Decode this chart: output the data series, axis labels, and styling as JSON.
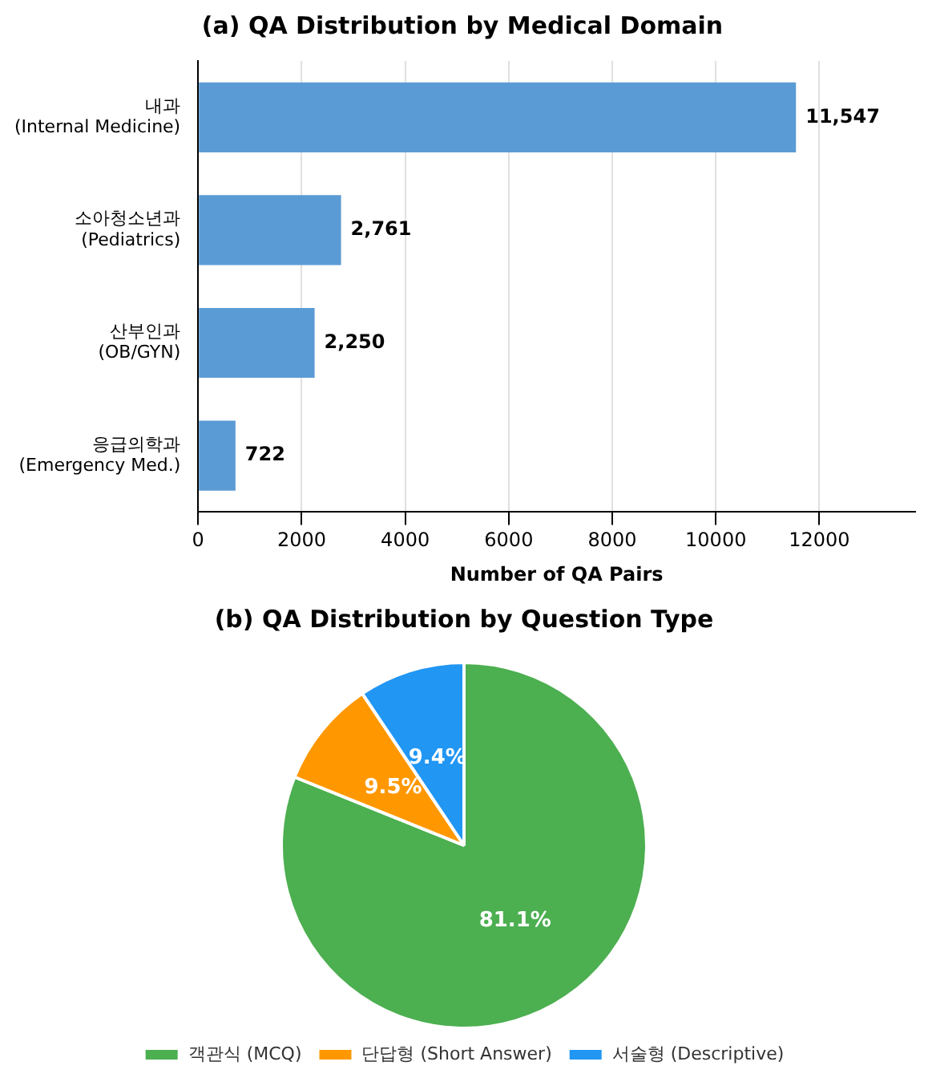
{
  "chart_data": [
    {
      "type": "bar",
      "title": "(a) QA Distribution by Medical Domain",
      "orientation": "horizontal",
      "categories": [
        "내과\n(Internal Medicine)",
        "소아청소년과\n(Pediatrics)",
        "산부인과\n(OB/GYN)",
        "응급의학과\n(Emergency Med.)"
      ],
      "values": [
        11547,
        2761,
        2250,
        722
      ],
      "value_labels": [
        "11,547",
        "2,761",
        "2,250",
        "722"
      ],
      "color": "#5b9bd5",
      "xlabel": "Number of QA Pairs",
      "xlim": [
        0,
        13850
      ],
      "xticks": [
        0,
        2000,
        4000,
        6000,
        8000,
        10000,
        12000
      ],
      "grid": "x",
      "legend": false
    },
    {
      "type": "pie",
      "title": "(b) QA Distribution by Question Type",
      "categories": [
        "객관식 (MCQ)",
        "단답형 (Short Answer)",
        "서술형 (Descriptive)"
      ],
      "values": [
        81.1,
        9.5,
        9.4
      ],
      "colors": [
        "#4caf50",
        "#ff9800",
        "#2196f3"
      ],
      "value_labels": [
        "81.1%",
        "9.5%",
        "9.4%"
      ],
      "legend": "bottom"
    }
  ]
}
